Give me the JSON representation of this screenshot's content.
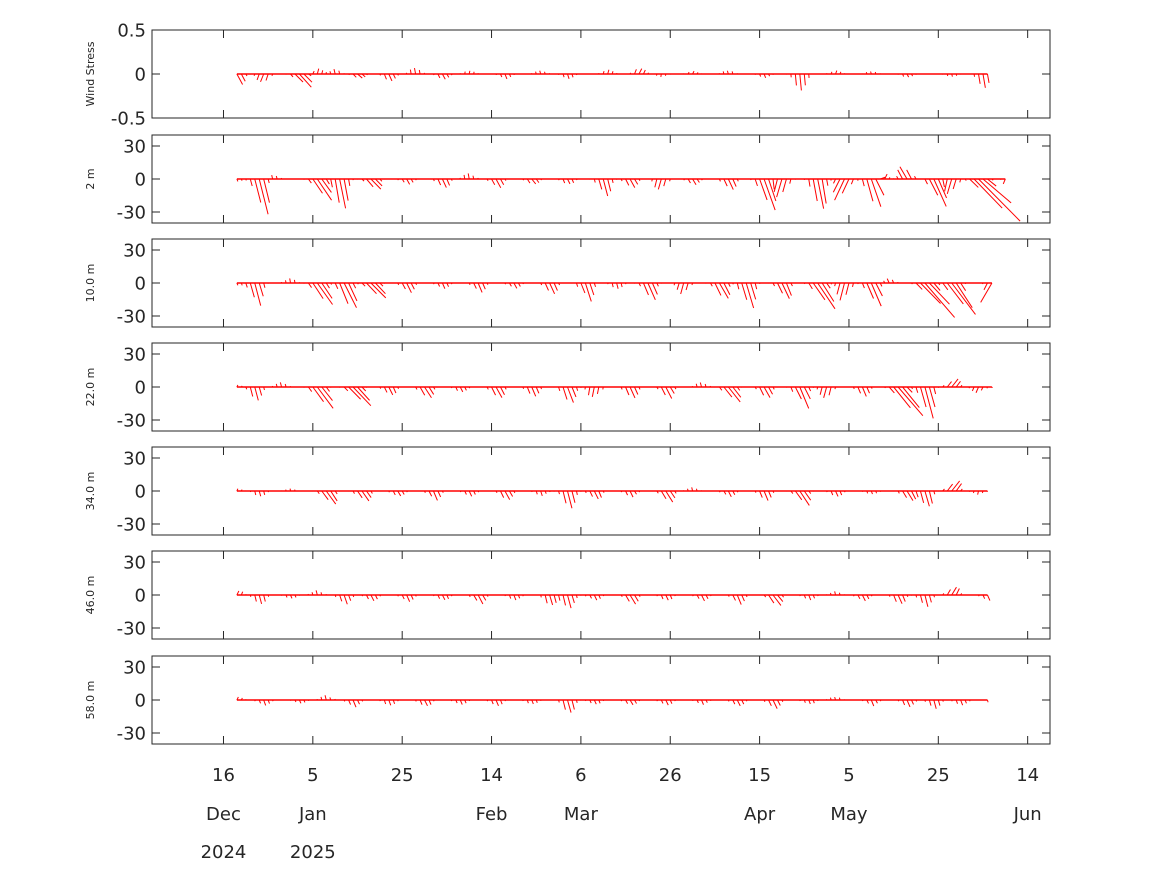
{
  "chart_data": {
    "type": "stick-vector",
    "colors": {
      "vector": "#ff0000",
      "axis": "#262626"
    },
    "x_range": [
      "2024-11-30",
      "2025-06-19"
    ],
    "x_ticks": [
      {
        "date": "2024-12-16",
        "day": "16",
        "month": "Dec",
        "year": "2024"
      },
      {
        "date": "2025-01-05",
        "day": "5",
        "month": "Jan",
        "year": "2025"
      },
      {
        "date": "2025-01-25",
        "day": "25",
        "month": "",
        "year": ""
      },
      {
        "date": "2025-02-14",
        "day": "14",
        "month": "Feb",
        "year": ""
      },
      {
        "date": "2025-03-06",
        "day": "6",
        "month": "Mar",
        "year": ""
      },
      {
        "date": "2025-03-26",
        "day": "26",
        "month": "",
        "year": ""
      },
      {
        "date": "2025-04-15",
        "day": "15",
        "month": "Apr",
        "year": ""
      },
      {
        "date": "2025-05-05",
        "day": "5",
        "month": "May",
        "year": ""
      },
      {
        "date": "2025-05-25",
        "day": "25",
        "month": "",
        "year": ""
      },
      {
        "date": "2025-06-14",
        "day": "14",
        "month": "Jun",
        "year": ""
      }
    ],
    "panels": [
      {
        "ylabel": "Wind Stress",
        "ylim": [
          -0.5,
          0.5
        ],
        "yticks": [
          {
            "v": 0.5,
            "t": "0.5"
          },
          {
            "v": 0,
            "t": "0"
          },
          {
            "v": -0.5,
            "t": "-0.5"
          }
        ],
        "start": "2024-12-19",
        "end": "2025-06-05",
        "events": [
          [
            0,
            -0.12,
            0.6
          ],
          [
            6,
            -0.1,
            -0.4
          ],
          [
            14,
            -0.15,
            1.0
          ],
          [
            18,
            0.06,
            0.3
          ],
          [
            22,
            0.05,
            -0.3
          ],
          [
            27,
            -0.05,
            1.2
          ],
          [
            34,
            -0.08,
            0.5
          ],
          [
            40,
            0.07,
            -0.2
          ],
          [
            46,
            -0.06,
            0.6
          ],
          [
            52,
            0.04,
            0.2
          ],
          [
            60,
            -0.05,
            0.5
          ],
          [
            68,
            0.04,
            -0.3
          ],
          [
            74,
            -0.05,
            0.4
          ],
          [
            83,
            0.05,
            0.3
          ],
          [
            90,
            0.07,
            0.5
          ],
          [
            95,
            -0.03,
            -0.2
          ],
          [
            102,
            0.03,
            0.6
          ],
          [
            110,
            0.04,
            -0.3
          ],
          [
            118,
            -0.04,
            0.5
          ],
          [
            126,
            -0.2,
            0.1
          ],
          [
            134,
            0.04,
            0.4
          ],
          [
            142,
            0.03,
            -0.3
          ],
          [
            150,
            -0.04,
            0.5
          ],
          [
            160,
            -0.03,
            0.3
          ],
          [
            167,
            -0.15,
            0.2
          ],
          [
            172,
            -0.05,
            0.3
          ],
          [
            180,
            0.05,
            1.0
          ]
        ]
      },
      {
        "ylabel": "2 m",
        "ylim": [
          -40,
          40
        ],
        "yticks": [
          {
            "v": 30,
            "t": "30"
          },
          {
            "v": 0,
            "t": "0"
          },
          {
            "v": -30,
            "t": "-30"
          }
        ],
        "start": "2024-12-19",
        "end": "2025-06-09",
        "events": [
          [
            0,
            -2,
            0.5
          ],
          [
            5,
            -30,
            0.3
          ],
          [
            8,
            4,
            -0.3
          ],
          [
            18,
            -18,
            0.8
          ],
          [
            23,
            -30,
            0.2
          ],
          [
            30,
            -10,
            1.0
          ],
          [
            38,
            -5,
            0.6
          ],
          [
            46,
            -8,
            0.5
          ],
          [
            52,
            5,
            -0.2
          ],
          [
            58,
            -8,
            0.6
          ],
          [
            66,
            -5,
            0.8
          ],
          [
            74,
            -5,
            0.5
          ],
          [
            82,
            -15,
            0.3
          ],
          [
            88,
            -8,
            0.6
          ],
          [
            95,
            -10,
            -0.3
          ],
          [
            102,
            -5,
            0.7
          ],
          [
            110,
            -10,
            0.5
          ],
          [
            118,
            -28,
            0.4
          ],
          [
            122,
            -18,
            -0.3
          ],
          [
            130,
            -30,
            0.2
          ],
          [
            136,
            -20,
            -0.5
          ],
          [
            142,
            -30,
            0.3
          ],
          [
            144,
            8,
            0.4
          ],
          [
            150,
            12,
            -0.6
          ],
          [
            156,
            -25,
            0.5
          ],
          [
            160,
            -15,
            -0.3
          ],
          [
            166,
            -35,
            1.2
          ],
          [
            174,
            -20,
            -0.5
          ],
          [
            180,
            -35,
            1.0
          ],
          [
            185,
            -25,
            0.6
          ],
          [
            190,
            5,
            0.8
          ]
        ]
      },
      {
        "ylabel": "10.0 m",
        "ylim": [
          -40,
          40
        ],
        "yticks": [
          {
            "v": 30,
            "t": "30"
          },
          {
            "v": 0,
            "t": "0"
          },
          {
            "v": -30,
            "t": "-30"
          }
        ],
        "start": "2024-12-19",
        "end": "2025-06-06",
        "events": [
          [
            0,
            -2,
            0.5
          ],
          [
            4,
            -20,
            0.3
          ],
          [
            12,
            4,
            -0.2
          ],
          [
            18,
            -22,
            0.7
          ],
          [
            24,
            -25,
            0.5
          ],
          [
            30,
            -15,
            1.0
          ],
          [
            38,
            -8,
            0.6
          ],
          [
            46,
            -5,
            0.5
          ],
          [
            54,
            -8,
            0.5
          ],
          [
            62,
            -5,
            0.6
          ],
          [
            70,
            -10,
            0.5
          ],
          [
            78,
            -15,
            0.4
          ],
          [
            85,
            -5,
            0.3
          ],
          [
            92,
            -15,
            0.5
          ],
          [
            100,
            -10,
            -0.3
          ],
          [
            108,
            -15,
            0.6
          ],
          [
            114,
            -25,
            0.3
          ],
          [
            122,
            -15,
            0.5
          ],
          [
            130,
            -25,
            0.7
          ],
          [
            136,
            -15,
            -0.3
          ],
          [
            142,
            -20,
            0.5
          ],
          [
            146,
            4,
            -0.5
          ],
          [
            154,
            -30,
            1.0
          ],
          [
            160,
            -30,
            0.8
          ],
          [
            170,
            -28,
            -0.6
          ],
          [
            176,
            -35,
            1.2
          ],
          [
            183,
            -10,
            0.5
          ],
          [
            186,
            3,
            0.4
          ]
        ]
      },
      {
        "ylabel": "22.0 m",
        "ylim": [
          -40,
          40
        ],
        "yticks": [
          {
            "v": 30,
            "t": "30"
          },
          {
            "v": 0,
            "t": "0"
          },
          {
            "v": -30,
            "t": "-30"
          }
        ],
        "start": "2024-12-19",
        "end": "2025-06-06",
        "events": [
          [
            0,
            2,
            0.5
          ],
          [
            4,
            -12,
            0.3
          ],
          [
            10,
            4,
            -0.3
          ],
          [
            18,
            -20,
            0.8
          ],
          [
            26,
            -18,
            1.0
          ],
          [
            34,
            -8,
            0.5
          ],
          [
            42,
            -10,
            0.7
          ],
          [
            50,
            -5,
            0.5
          ],
          [
            58,
            -10,
            0.6
          ],
          [
            66,
            -8,
            0.5
          ],
          [
            74,
            -15,
            0.4
          ],
          [
            80,
            -10,
            -0.2
          ],
          [
            88,
            -10,
            0.5
          ],
          [
            96,
            -10,
            0.6
          ],
          [
            104,
            4,
            -0.3
          ],
          [
            110,
            -15,
            0.8
          ],
          [
            118,
            -10,
            0.6
          ],
          [
            126,
            -18,
            0.5
          ],
          [
            132,
            -10,
            -0.3
          ],
          [
            140,
            -8,
            0.5
          ],
          [
            148,
            -25,
            1.0
          ],
          [
            154,
            -28,
            0.3
          ],
          [
            160,
            8,
            0.8
          ],
          [
            166,
            -5,
            -0.5
          ],
          [
            172,
            -22,
            0.8
          ],
          [
            176,
            -15,
            0.6
          ],
          [
            180,
            8,
            0.5
          ],
          [
            186,
            -10,
            0.3
          ]
        ]
      },
      {
        "ylabel": "34.0 m",
        "ylim": [
          -40,
          40
        ],
        "yticks": [
          {
            "v": 30,
            "t": "30"
          },
          {
            "v": 0,
            "t": "0"
          },
          {
            "v": -30,
            "t": "-30"
          }
        ],
        "start": "2024-12-19",
        "end": "2025-06-05",
        "events": [
          [
            0,
            2,
            0.5
          ],
          [
            5,
            -5,
            0.3
          ],
          [
            12,
            2,
            -0.2
          ],
          [
            20,
            -12,
            0.8
          ],
          [
            28,
            -10,
            0.7
          ],
          [
            36,
            -5,
            0.6
          ],
          [
            44,
            -8,
            0.5
          ],
          [
            52,
            -5,
            0.5
          ],
          [
            60,
            -8,
            0.6
          ],
          [
            68,
            -4,
            0.4
          ],
          [
            74,
            -15,
            0.3
          ],
          [
            80,
            -8,
            0.5
          ],
          [
            88,
            -5,
            0.6
          ],
          [
            96,
            -10,
            0.7
          ],
          [
            102,
            3,
            -0.3
          ],
          [
            110,
            -5,
            0.6
          ],
          [
            118,
            -8,
            0.5
          ],
          [
            126,
            -12,
            0.8
          ],
          [
            134,
            -5,
            0.5
          ],
          [
            142,
            -3,
            0.4
          ],
          [
            150,
            -10,
            0.6
          ],
          [
            154,
            -15,
            0.3
          ],
          [
            160,
            10,
            0.8
          ],
          [
            166,
            -3,
            -0.3
          ],
          [
            172,
            -12,
            0.4
          ],
          [
            176,
            10,
            0.8
          ],
          [
            184,
            5,
            0.5
          ]
        ]
      },
      {
        "ylabel": "46.0 m",
        "ylim": [
          -40,
          40
        ],
        "yticks": [
          {
            "v": 30,
            "t": "30"
          },
          {
            "v": 0,
            "t": "0"
          },
          {
            "v": -30,
            "t": "-30"
          }
        ],
        "start": "2024-12-19",
        "end": "2025-06-05",
        "events": [
          [
            0,
            4,
            0.5
          ],
          [
            5,
            -8,
            0.3
          ],
          [
            12,
            -3,
            0.5
          ],
          [
            18,
            4,
            -0.3
          ],
          [
            24,
            -8,
            0.4
          ],
          [
            30,
            -5,
            0.6
          ],
          [
            38,
            -6,
            0.5
          ],
          [
            46,
            -5,
            0.5
          ],
          [
            54,
            -8,
            0.6
          ],
          [
            62,
            -5,
            0.4
          ],
          [
            70,
            -10,
            0.3
          ],
          [
            74,
            -12,
            0.3
          ],
          [
            80,
            -5,
            0.5
          ],
          [
            88,
            -8,
            0.7
          ],
          [
            96,
            -5,
            0.5
          ],
          [
            104,
            -5,
            0.6
          ],
          [
            112,
            -8,
            0.5
          ],
          [
            120,
            -10,
            0.8
          ],
          [
            128,
            -5,
            0.4
          ],
          [
            134,
            3,
            -0.3
          ],
          [
            140,
            -5,
            0.6
          ],
          [
            148,
            -8,
            0.5
          ],
          [
            154,
            -10,
            0.3
          ],
          [
            160,
            8,
            0.6
          ],
          [
            168,
            -5,
            0.5
          ],
          [
            172,
            -8,
            0.3
          ],
          [
            176,
            10,
            0.8
          ],
          [
            182,
            5,
            0.4
          ]
        ]
      },
      {
        "ylabel": "58.0 m",
        "ylim": [
          -40,
          40
        ],
        "yticks": [
          {
            "v": 30,
            "t": "30"
          },
          {
            "v": 0,
            "t": "0"
          },
          {
            "v": -30,
            "t": "-30"
          }
        ],
        "start": "2024-12-19",
        "end": "2025-06-05",
        "events": [
          [
            0,
            3,
            0.5
          ],
          [
            6,
            -5,
            0.4
          ],
          [
            14,
            -3,
            0.5
          ],
          [
            20,
            4,
            -0.3
          ],
          [
            26,
            -6,
            0.5
          ],
          [
            34,
            -5,
            0.4
          ],
          [
            42,
            -6,
            0.5
          ],
          [
            50,
            -4,
            0.5
          ],
          [
            58,
            -5,
            0.5
          ],
          [
            66,
            -4,
            0.4
          ],
          [
            74,
            -12,
            0.3
          ],
          [
            80,
            -4,
            0.5
          ],
          [
            88,
            -5,
            0.6
          ],
          [
            96,
            -5,
            0.5
          ],
          [
            104,
            -4,
            0.5
          ],
          [
            112,
            -6,
            0.5
          ],
          [
            120,
            -7,
            0.6
          ],
          [
            128,
            -4,
            0.4
          ],
          [
            134,
            3,
            -0.3
          ],
          [
            142,
            -5,
            0.5
          ],
          [
            150,
            -6,
            0.5
          ],
          [
            156,
            -8,
            0.3
          ],
          [
            162,
            -5,
            0.4
          ],
          [
            170,
            -10,
            0.3
          ],
          [
            174,
            5,
            0.6
          ],
          [
            180,
            3,
            0.4
          ]
        ]
      }
    ]
  }
}
